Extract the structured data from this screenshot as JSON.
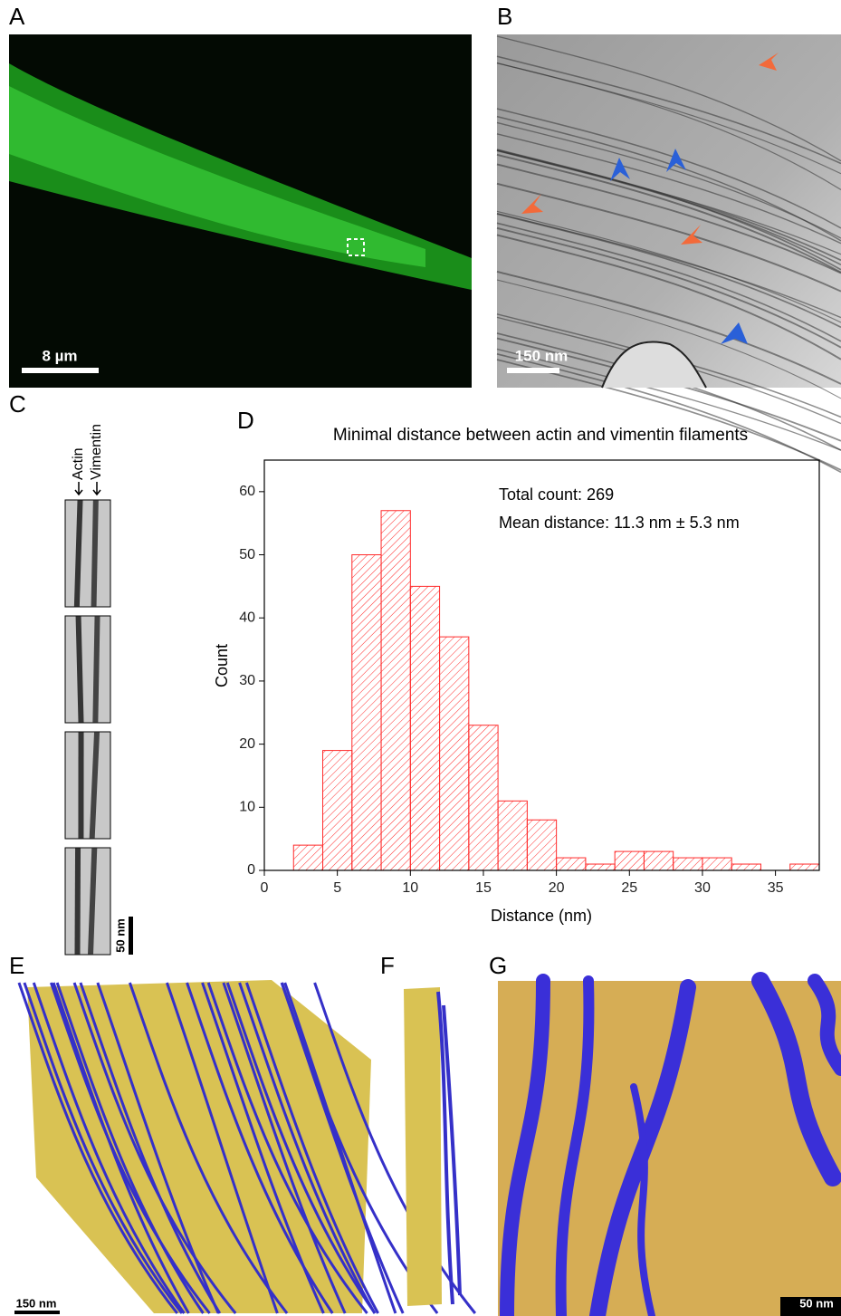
{
  "panels": {
    "A": {
      "label": "A",
      "scale_bar": "8 µm"
    },
    "B": {
      "label": "B",
      "scale_bar": "150 nm"
    },
    "C": {
      "label": "C",
      "labels": [
        "Actin",
        "Vimentin"
      ],
      "scale_bar": "50 nm"
    },
    "D": {
      "label": "D"
    },
    "E": {
      "label": "E",
      "scale_bar": "150 nm"
    },
    "F": {
      "label": "F"
    },
    "G": {
      "label": "G",
      "scale_bar": "50 nm"
    }
  },
  "chart_data": {
    "type": "histogram",
    "title": "Minimal distance between actin and vimentin filaments",
    "x_label": "Distance (nm)",
    "y_label": "Count",
    "annotations": [
      "Total count: 269",
      "Mean distance: 11.3 nm ± 5.3 nm"
    ],
    "bins": [
      2,
      4,
      6,
      8,
      10,
      12,
      14,
      16,
      18,
      20,
      22,
      24,
      26,
      28,
      30,
      32,
      34,
      36,
      38
    ],
    "values": [
      4,
      19,
      50,
      57,
      45,
      37,
      23,
      11,
      8,
      2,
      1,
      3,
      3,
      2,
      2,
      1,
      0,
      1
    ],
    "color": "#ff2a2a",
    "hatch": true,
    "xlim": [
      0,
      38
    ],
    "ylim": [
      0,
      65
    ],
    "xticks": [
      0,
      5,
      10,
      15,
      20,
      25,
      30,
      35
    ],
    "yticks": [
      0,
      10,
      20,
      30,
      40,
      50,
      60
    ]
  }
}
